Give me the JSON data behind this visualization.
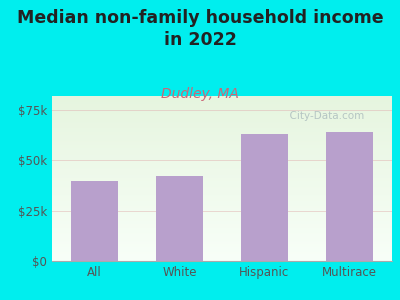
{
  "title": "Median non-family household income\nin 2022",
  "subtitle": "Dudley, MA",
  "categories": [
    "All",
    "White",
    "Hispanic",
    "Multirace"
  ],
  "values": [
    40000,
    42000,
    63000,
    64000
  ],
  "bar_color": "#b8a0cc",
  "background_color": "#00EEEE",
  "plot_bg_top": "#e6f5df",
  "plot_bg_bottom": "#f8fff8",
  "yticks": [
    0,
    25000,
    50000,
    75000
  ],
  "ytick_labels": [
    "$0",
    "$25k",
    "$50k",
    "$75k"
  ],
  "ylim": [
    0,
    82000
  ],
  "grid_color": "#e0b0b0",
  "grid_alpha": 0.5,
  "title_fontsize": 12.5,
  "subtitle_fontsize": 10,
  "subtitle_color": "#cc6677",
  "tick_label_color": "#555555",
  "watermark": "  City-Data.com",
  "watermark_color": "#b0c0c0"
}
